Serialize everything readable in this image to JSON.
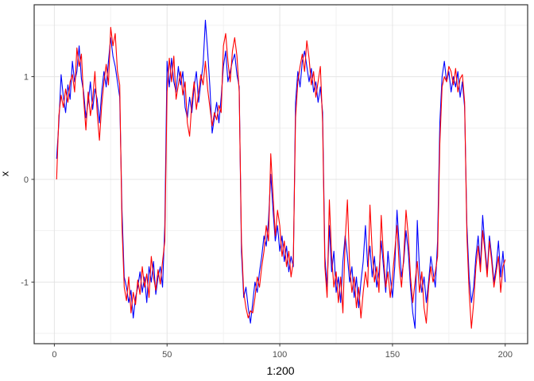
{
  "chart_data": {
    "type": "line",
    "title": "",
    "xlabel": "1:200",
    "ylabel": "x",
    "x": {
      "start": 1,
      "step": 1,
      "n": 200
    },
    "xlim": [
      -8.95,
      209.95
    ],
    "ylim": [
      -1.6,
      1.7
    ],
    "x_ticks": [
      0,
      50,
      100,
      150,
      200
    ],
    "x_minor_ticks": [
      25,
      75,
      125,
      175
    ],
    "y_ticks": [
      -1,
      0,
      1
    ],
    "y_minor_ticks": [
      -1.5,
      -0.5,
      0.5,
      1.5
    ],
    "grid": {
      "major_color": "#e4e4e4",
      "minor_color": "#f1f1f1",
      "show": true
    },
    "panel": {
      "border_color": "#333333",
      "background": "#ffffff"
    },
    "tick_color": "#333333",
    "tick_label_color": "#4d4d4d",
    "legend": "none",
    "series": [
      {
        "name": "series-blue",
        "color": "#0000ff",
        "values": [
          0.2,
          0.55,
          1.02,
          0.8,
          0.65,
          0.92,
          0.78,
          1.15,
          0.95,
          1.05,
          1.3,
          0.98,
          0.85,
          0.6,
          0.75,
          0.95,
          0.68,
          0.88,
          0.78,
          0.55,
          0.85,
          1.05,
          0.9,
          1.15,
          1.38,
          1.2,
          1.1,
          0.95,
          0.8,
          -0.3,
          -0.95,
          -1.05,
          -1.2,
          -1.08,
          -1.35,
          -1.15,
          -1.05,
          -0.9,
          -1.1,
          -0.95,
          -1.2,
          -0.85,
          -1.0,
          -0.8,
          -1.12,
          -0.95,
          -0.85,
          -1.05,
          -0.45,
          1.15,
          0.9,
          1.18,
          0.95,
          0.85,
          1.1,
          0.92,
          1.05,
          0.7,
          0.6,
          0.8,
          0.65,
          0.9,
          1.05,
          0.75,
          0.95,
          1.12,
          1.55,
          1.25,
          0.9,
          0.45,
          0.6,
          0.75,
          0.55,
          0.8,
          1.1,
          1.25,
          0.95,
          1.05,
          1.15,
          1.22,
          1.02,
          0.9,
          -0.7,
          -1.15,
          -1.05,
          -1.25,
          -1.4,
          -1.2,
          -1.0,
          -1.1,
          -0.9,
          -0.75,
          -0.55,
          -0.65,
          -0.4,
          0.05,
          -0.3,
          -0.6,
          -0.45,
          -0.7,
          -0.55,
          -0.8,
          -0.65,
          -0.9,
          -0.75,
          -0.85,
          0.75,
          1.05,
          0.9,
          1.15,
          1.25,
          1.1,
          0.95,
          1.08,
          0.85,
          0.95,
          0.75,
          0.9,
          0.65,
          -0.75,
          -1.05,
          -0.45,
          -0.9,
          -0.7,
          -1.1,
          -0.95,
          -1.2,
          -0.8,
          -0.55,
          -0.75,
          -1.0,
          -0.85,
          -1.15,
          -0.95,
          -1.25,
          -1.0,
          -0.8,
          -0.45,
          -0.85,
          -0.65,
          -0.95,
          -0.75,
          -1.05,
          -0.9,
          -0.6,
          -0.85,
          -1.1,
          -0.7,
          -0.95,
          -1.15,
          -0.85,
          -0.3,
          -0.65,
          -0.95,
          -0.8,
          -0.5,
          -0.7,
          -1.05,
          -1.3,
          -1.45,
          -0.4,
          -0.9,
          -1.1,
          -0.95,
          -1.2,
          -1.0,
          -0.75,
          -0.9,
          -1.05,
          -0.6,
          0.55,
          1.0,
          1.15,
          0.95,
          1.05,
          0.85,
          1.0,
          0.9,
          1.05,
          0.8,
          0.95,
          0.7,
          -0.45,
          -0.95,
          -1.2,
          -1.05,
          -0.75,
          -0.55,
          -0.85,
          -0.35,
          -0.65,
          -0.9,
          -0.55,
          -0.75,
          -1.0,
          -0.85,
          -0.6,
          -0.95,
          -0.7,
          -1.0
        ]
      },
      {
        "name": "series-red",
        "color": "#ff0000",
        "values": [
          0.0,
          0.62,
          0.82,
          0.7,
          0.88,
          0.75,
          0.95,
          1.02,
          0.85,
          1.28,
          1.1,
          1.22,
          0.78,
          0.48,
          0.85,
          0.62,
          0.78,
          1.05,
          0.65,
          0.38,
          0.72,
          0.95,
          1.12,
          0.92,
          1.48,
          1.3,
          1.42,
          1.05,
          0.92,
          -0.45,
          -1.05,
          -1.18,
          -0.95,
          -1.3,
          -1.1,
          -1.22,
          -0.98,
          -1.12,
          -0.85,
          -1.05,
          -0.92,
          -1.15,
          -0.75,
          -0.95,
          -1.08,
          -0.88,
          -1.02,
          -0.8,
          -0.6,
          0.85,
          1.18,
          0.95,
          1.2,
          0.78,
          0.92,
          1.05,
          0.82,
          0.95,
          0.55,
          0.42,
          0.75,
          0.95,
          0.68,
          0.85,
          1.02,
          0.92,
          1.15,
          0.88,
          0.7,
          0.52,
          0.65,
          0.58,
          0.72,
          0.65,
          1.3,
          1.42,
          1.15,
          0.95,
          1.25,
          1.38,
          1.2,
          0.85,
          -0.6,
          -1.1,
          -1.25,
          -1.35,
          -1.28,
          -1.3,
          -1.15,
          -0.95,
          -1.05,
          -0.85,
          -0.7,
          -0.45,
          -0.6,
          0.25,
          -0.15,
          -0.55,
          -0.3,
          -0.45,
          -0.75,
          -0.6,
          -0.85,
          -0.7,
          -0.95,
          -0.8,
          0.6,
          0.95,
          1.1,
          1.22,
          1.05,
          1.35,
          1.18,
          0.92,
          1.05,
          0.8,
          0.95,
          1.1,
          0.55,
          -0.85,
          -1.15,
          -0.2,
          -0.75,
          -1.05,
          -0.9,
          -1.2,
          -0.95,
          -1.3,
          -0.6,
          -0.2,
          -0.85,
          -1.1,
          -0.95,
          -1.25,
          -1.05,
          -1.35,
          -1.1,
          -0.9,
          -1.05,
          -0.25,
          -0.7,
          -1.0,
          -0.85,
          -1.1,
          -0.35,
          -0.75,
          -1.05,
          -0.9,
          -1.15,
          -0.95,
          -0.7,
          -0.45,
          -0.85,
          -1.05,
          -0.75,
          -0.3,
          -0.55,
          -0.95,
          -1.2,
          -1.0,
          -0.8,
          -1.1,
          -0.9,
          -1.25,
          -1.4,
          -1.05,
          -0.85,
          -1.0,
          -0.9,
          -0.75,
          0.35,
          0.9,
          1.0,
          0.95,
          1.1,
          1.05,
          0.92,
          1.08,
          0.85,
          0.98,
          1.02,
          0.75,
          -0.55,
          -1.1,
          -1.45,
          -1.2,
          -0.85,
          -0.65,
          -0.9,
          -0.5,
          -0.7,
          -0.95,
          -0.6,
          -0.8,
          -1.05,
          -0.9,
          -0.75,
          -1.1,
          -0.85,
          -0.78
        ]
      }
    ]
  }
}
